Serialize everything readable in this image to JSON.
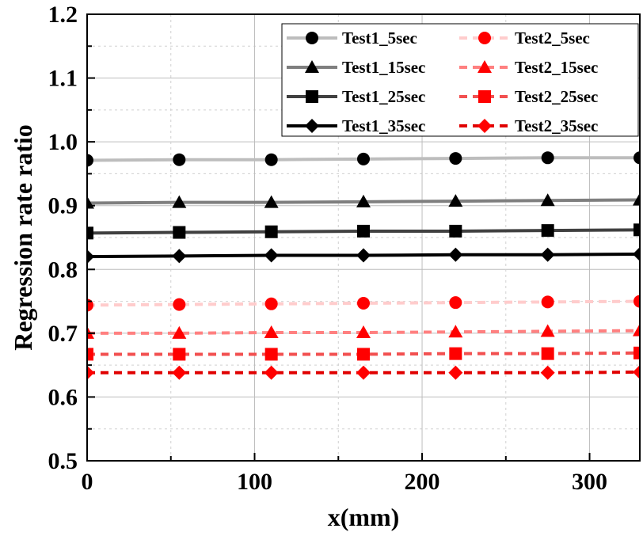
{
  "chart_data": {
    "type": "line",
    "title": "",
    "xlabel": "x(mm)",
    "ylabel": "Regression rate ratio",
    "xlim": [
      0,
      330
    ],
    "ylim": [
      0.5,
      1.2
    ],
    "x_ticks": [
      0,
      100,
      200,
      300
    ],
    "x_tick_labels": [
      "0",
      "100",
      "200",
      "300"
    ],
    "y_ticks": [
      0.5,
      0.6,
      0.7,
      0.8,
      0.9,
      1.0,
      1.1,
      1.2
    ],
    "y_tick_labels": [
      "0.5",
      "0.6",
      "0.7",
      "0.8",
      "0.9",
      "1.0",
      "1.1",
      "1.2"
    ],
    "grid": true,
    "legend_position": "top-right",
    "x": [
      0,
      55,
      110,
      165,
      220,
      275,
      330
    ],
    "series": [
      {
        "name": "Test1_5sec",
        "color": "#bdbdbd",
        "dash": "solid",
        "marker": "circle",
        "values": [
          0.971,
          0.972,
          0.972,
          0.973,
          0.974,
          0.975,
          0.975
        ]
      },
      {
        "name": "Test1_15sec",
        "color": "#7f7f7f",
        "dash": "solid",
        "marker": "triangle",
        "values": [
          0.904,
          0.905,
          0.905,
          0.906,
          0.907,
          0.908,
          0.909
        ]
      },
      {
        "name": "Test1_25sec",
        "color": "#404040",
        "dash": "solid",
        "marker": "square",
        "values": [
          0.857,
          0.858,
          0.859,
          0.86,
          0.86,
          0.861,
          0.862
        ]
      },
      {
        "name": "Test1_35sec",
        "color": "#000000",
        "dash": "solid",
        "marker": "diamond",
        "values": [
          0.82,
          0.821,
          0.822,
          0.822,
          0.823,
          0.823,
          0.824
        ]
      },
      {
        "name": "Test2_5sec",
        "color": "#ffcccc",
        "dash": "dashed",
        "marker": "circle",
        "values": [
          0.744,
          0.745,
          0.746,
          0.747,
          0.748,
          0.749,
          0.75
        ]
      },
      {
        "name": "Test2_15sec",
        "color": "#ff8080",
        "dash": "dashed",
        "marker": "triangle",
        "values": [
          0.7,
          0.7,
          0.701,
          0.701,
          0.702,
          0.703,
          0.704
        ]
      },
      {
        "name": "Test2_25sec",
        "color": "#f25050",
        "dash": "dashed",
        "marker": "square",
        "values": [
          0.667,
          0.667,
          0.667,
          0.667,
          0.668,
          0.668,
          0.669
        ]
      },
      {
        "name": "Test2_35sec",
        "color": "#e00000",
        "dash": "dashed",
        "marker": "diamond",
        "values": [
          0.638,
          0.638,
          0.638,
          0.638,
          0.638,
          0.638,
          0.639
        ]
      }
    ],
    "marker_color_test1": "#000000",
    "marker_color_test2": "#ff0000"
  }
}
